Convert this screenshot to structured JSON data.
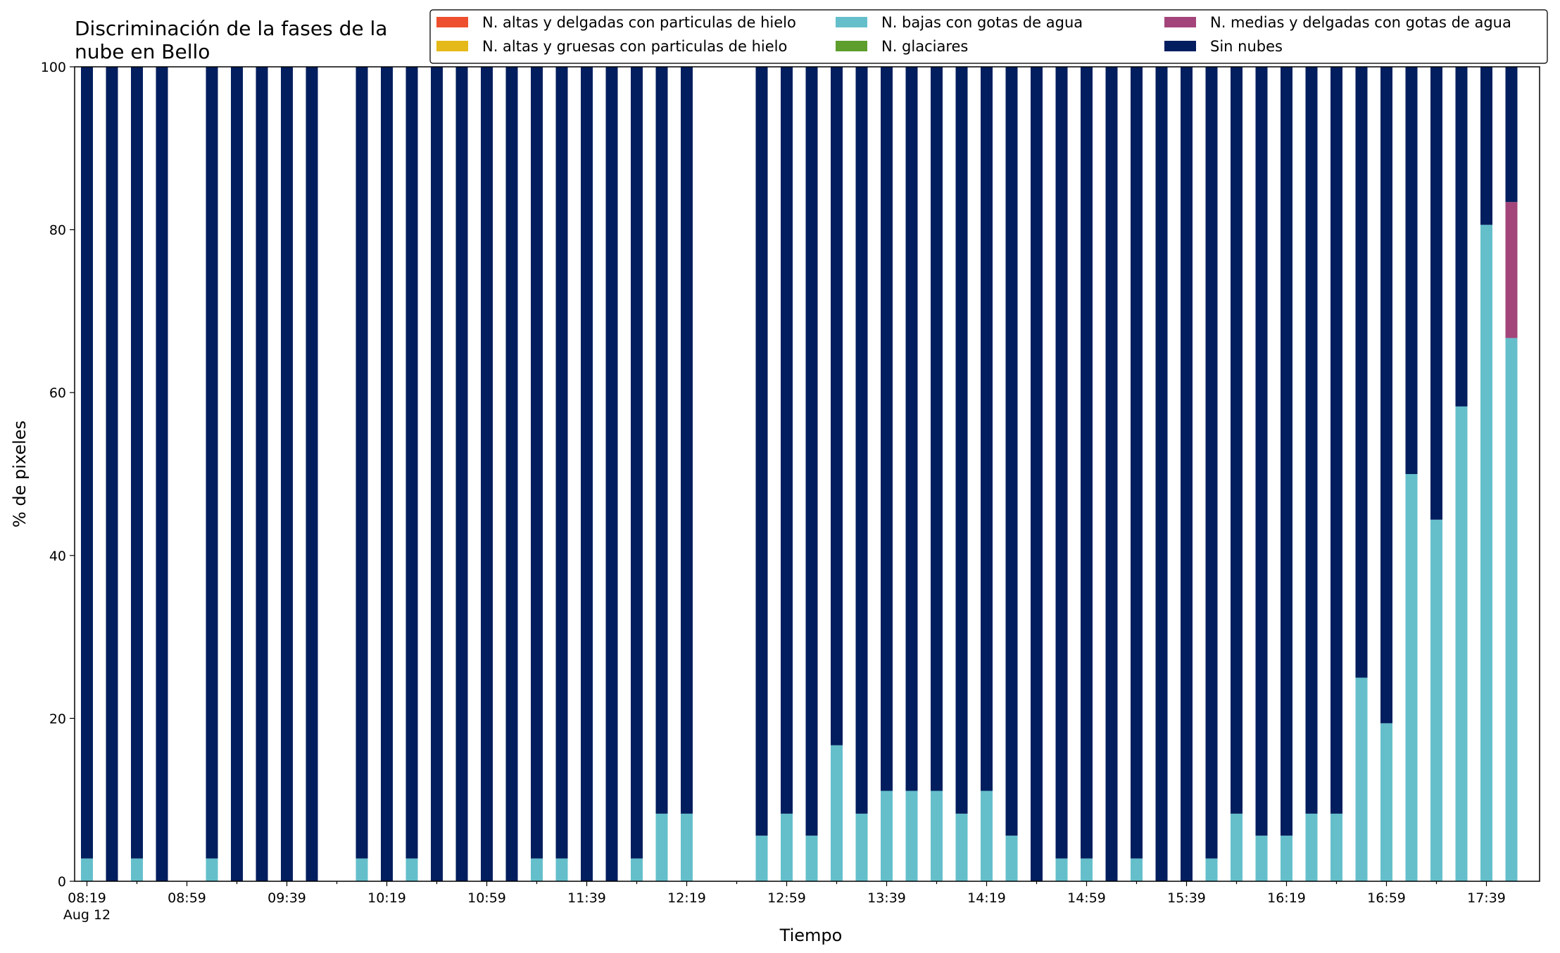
{
  "chart_data": {
    "type": "bar",
    "stacked": true,
    "title_lines": [
      "Discriminación de la fases de la",
      "nube en Bello"
    ],
    "xlabel": "Tiempo",
    "ylabel": "% de pixeles",
    "ylim": [
      0,
      100
    ],
    "yticks": [
      0,
      20,
      40,
      60,
      80,
      100
    ],
    "xtick_labels": [
      {
        "slot": 0,
        "text": "08:19",
        "sub": "Aug 12"
      },
      {
        "slot": 4,
        "text": "08:59"
      },
      {
        "slot": 8,
        "text": "09:39"
      },
      {
        "slot": 12,
        "text": "10:19"
      },
      {
        "slot": 16,
        "text": "10:59"
      },
      {
        "slot": 20,
        "text": "11:39"
      },
      {
        "slot": 24,
        "text": "12:19"
      },
      {
        "slot": 28,
        "text": "12:59"
      },
      {
        "slot": 32,
        "text": "13:39"
      },
      {
        "slot": 36,
        "text": "14:19"
      },
      {
        "slot": 40,
        "text": "14:59"
      },
      {
        "slot": 44,
        "text": "15:39"
      },
      {
        "slot": 48,
        "text": "16:19"
      },
      {
        "slot": 52,
        "text": "16:59"
      },
      {
        "slot": 56,
        "text": "17:39"
      }
    ],
    "grid": false,
    "legend_position": "top-right",
    "x": [
      "08:19",
      "08:29",
      "08:39",
      "08:49",
      "08:59",
      "09:09",
      "09:19",
      "09:29",
      "09:39",
      "09:49",
      "09:59",
      "10:09",
      "10:19",
      "10:29",
      "10:39",
      "10:49",
      "10:59",
      "11:09",
      "11:19",
      "11:29",
      "11:39",
      "11:49",
      "11:59",
      "12:09",
      "12:19",
      "12:29",
      "12:39",
      "12:49",
      "12:59",
      "13:09",
      "13:19",
      "13:29",
      "13:39",
      "13:49",
      "13:59",
      "14:09",
      "14:19",
      "14:29",
      "14:39",
      "14:49",
      "14:59",
      "15:09",
      "15:19",
      "15:29",
      "15:39",
      "15:49",
      "15:59",
      "16:09",
      "16:19",
      "16:29",
      "16:39",
      "16:49",
      "16:59",
      "17:09",
      "17:19",
      "17:29",
      "17:39",
      "17:49"
    ],
    "present": [
      true,
      true,
      true,
      true,
      false,
      true,
      true,
      true,
      true,
      true,
      false,
      true,
      true,
      true,
      true,
      true,
      true,
      true,
      true,
      true,
      true,
      true,
      true,
      true,
      true,
      false,
      false,
      true,
      true,
      true,
      true,
      true,
      true,
      true,
      true,
      true,
      true,
      true,
      true,
      true,
      true,
      true,
      true,
      true,
      true,
      true,
      true,
      true,
      true,
      true,
      true,
      true,
      true,
      true,
      true,
      true,
      true,
      true
    ],
    "series": [
      {
        "name": "N. altas y delgadas con particulas de hielo",
        "color": "#ee4f2e",
        "values": [
          0,
          0,
          0,
          0,
          0,
          0,
          0,
          0,
          0,
          0,
          0,
          0,
          0,
          0,
          0,
          0,
          0,
          0,
          0,
          0,
          0,
          0,
          0,
          0,
          0,
          0,
          0,
          0,
          0,
          0,
          0,
          0,
          0,
          0,
          0,
          0,
          0,
          0,
          0,
          0,
          0,
          0,
          0,
          0,
          0,
          0,
          0,
          0,
          0,
          0,
          0,
          0,
          0,
          0,
          0,
          0,
          0,
          0
        ]
      },
      {
        "name": "N. altas y gruesas con particulas de hielo",
        "color": "#e5b919",
        "values": [
          0,
          0,
          0,
          0,
          0,
          0,
          0,
          0,
          0,
          0,
          0,
          0,
          0,
          0,
          0,
          0,
          0,
          0,
          0,
          0,
          0,
          0,
          0,
          0,
          0,
          0,
          0,
          0,
          0,
          0,
          0,
          0,
          0,
          0,
          0,
          0,
          0,
          0,
          0,
          0,
          0,
          0,
          0,
          0,
          0,
          0,
          0,
          0,
          0,
          0,
          0,
          0,
          0,
          0,
          0,
          0,
          0,
          0
        ]
      },
      {
        "name": "N. bajas con gotas de agua",
        "color": "#64bfcb",
        "values": [
          2.8,
          0,
          2.8,
          0,
          0,
          2.8,
          0,
          0,
          0,
          0,
          0,
          2.8,
          0,
          2.8,
          0,
          0,
          0,
          0,
          2.8,
          2.8,
          0,
          0,
          2.8,
          8.3,
          8.3,
          0,
          0,
          5.6,
          8.3,
          5.6,
          16.7,
          8.3,
          11.1,
          11.1,
          11.1,
          8.3,
          11.1,
          5.6,
          0,
          2.8,
          2.8,
          0,
          2.8,
          0,
          0,
          2.8,
          8.3,
          5.6,
          5.6,
          8.3,
          8.3,
          25,
          19.4,
          50,
          44.4,
          58.3,
          80.6,
          66.7
        ]
      },
      {
        "name": "N. glaciares",
        "color": "#5d9e2d",
        "values": [
          0,
          0,
          0,
          0,
          0,
          0,
          0,
          0,
          0,
          0,
          0,
          0,
          0,
          0,
          0,
          0,
          0,
          0,
          0,
          0,
          0,
          0,
          0,
          0,
          0,
          0,
          0,
          0,
          0,
          0,
          0,
          0,
          0,
          0,
          0,
          0,
          0,
          0,
          0,
          0,
          0,
          0,
          0,
          0,
          0,
          0,
          0,
          0,
          0,
          0,
          0,
          0,
          0,
          0,
          0,
          0,
          0,
          0
        ]
      },
      {
        "name": "N. medias y delgadas con gotas de agua",
        "color": "#a3457a",
        "values": [
          0,
          0,
          0,
          0,
          0,
          0,
          0,
          0,
          0,
          0,
          0,
          0,
          0,
          0,
          0,
          0,
          0,
          0,
          0,
          0,
          0,
          0,
          0,
          0,
          0,
          0,
          0,
          0,
          0,
          0,
          0,
          0,
          0,
          0,
          0,
          0,
          0,
          0,
          0,
          0,
          0,
          0,
          0,
          0,
          0,
          0,
          0,
          0,
          0,
          0,
          0,
          0,
          0,
          0,
          0,
          0,
          0,
          16.7
        ]
      },
      {
        "name": "Sin nubes",
        "color": "#021e5e",
        "values": [
          97.2,
          100,
          97.2,
          100,
          0,
          97.2,
          100,
          100,
          100,
          100,
          0,
          97.2,
          100,
          97.2,
          100,
          100,
          100,
          100,
          97.2,
          97.2,
          100,
          100,
          97.2,
          91.7,
          91.7,
          0,
          0,
          94.4,
          91.7,
          94.4,
          83.3,
          91.7,
          88.9,
          88.9,
          88.9,
          91.7,
          88.9,
          94.4,
          100,
          97.2,
          97.2,
          100,
          97.2,
          100,
          100,
          97.2,
          91.7,
          94.4,
          94.4,
          91.7,
          91.7,
          75,
          80.6,
          50,
          55.6,
          41.7,
          19.4,
          16.6
        ]
      }
    ]
  }
}
